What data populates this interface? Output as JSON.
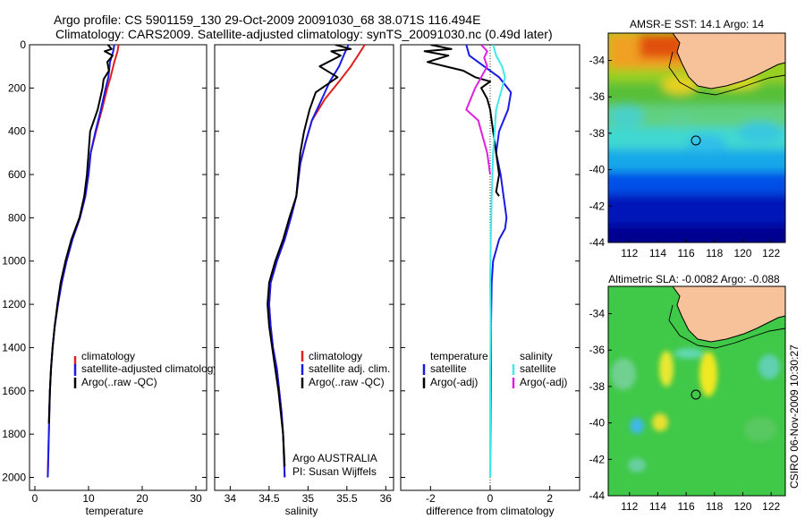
{
  "title": {
    "line1": "Argo profile: CS 5901159_130 29-Oct-2009 20091030_68 38.071S 116.494E",
    "line2": "Climatology: CARS2009. Satellite-adjusted climatology: synTS_20091030.nc (0.49d later)"
  },
  "colors": {
    "red": "#e02020",
    "blue": "#1a1ae6",
    "black": "#000000",
    "cyan": "#40e8e8",
    "magenta": "#e020e0",
    "land": "#f7c19a"
  },
  "chart_data": [
    {
      "type": "line",
      "name": "temperature-panel",
      "xlabel": "temperature",
      "xlim": [
        -1,
        32
      ],
      "ylim": [
        2060,
        0
      ],
      "xticks": [
        "0",
        "10",
        "20",
        "30"
      ],
      "yticks": [
        "0",
        "200",
        "400",
        "600",
        "800",
        "1000",
        "1200",
        "1400",
        "1600",
        "1800",
        "2000"
      ],
      "legend": [
        "climatology",
        "satellite-adjusted climatology",
        "Argo(..raw -QC)"
      ],
      "series": [
        {
          "name": "climatology",
          "color": "red",
          "points": [
            [
              15.6,
              0
            ],
            [
              15.4,
              30
            ],
            [
              14.8,
              80
            ],
            [
              14.1,
              150
            ],
            [
              13.5,
              200
            ],
            [
              12.5,
              300
            ],
            [
              11.4,
              400
            ],
            [
              10.4,
              500
            ],
            [
              10.0,
              600
            ],
            [
              9.4,
              700
            ],
            [
              8.4,
              800
            ],
            [
              7.0,
              900
            ],
            [
              5.9,
              1000
            ],
            [
              5.0,
              1100
            ],
            [
              4.3,
              1200
            ],
            [
              3.7,
              1300
            ],
            [
              3.3,
              1400
            ],
            [
              3.0,
              1500
            ],
            [
              2.8,
              1600
            ],
            [
              2.6,
              1800
            ],
            [
              2.4,
              2000
            ]
          ]
        },
        {
          "name": "satellite",
          "color": "blue",
          "points": [
            [
              14.8,
              0
            ],
            [
              14.6,
              30
            ],
            [
              14.0,
              80
            ],
            [
              13.7,
              150
            ],
            [
              13.2,
              200
            ],
            [
              12.3,
              300
            ],
            [
              11.3,
              400
            ],
            [
              10.4,
              500
            ],
            [
              10.0,
              600
            ],
            [
              9.4,
              700
            ],
            [
              8.4,
              800
            ],
            [
              7.0,
              900
            ],
            [
              5.9,
              1000
            ],
            [
              5.0,
              1100
            ],
            [
              4.3,
              1200
            ],
            [
              3.7,
              1300
            ],
            [
              3.3,
              1400
            ],
            [
              3.0,
              1500
            ],
            [
              2.8,
              1600
            ],
            [
              2.6,
              1800
            ],
            [
              2.4,
              2000
            ]
          ]
        },
        {
          "name": "argo",
          "color": "black",
          "points": [
            [
              13.6,
              0
            ],
            [
              14.3,
              20
            ],
            [
              13.0,
              30
            ],
            [
              14.5,
              50
            ],
            [
              13.5,
              80
            ],
            [
              13.8,
              120
            ],
            [
              12.8,
              160
            ],
            [
              12.6,
              200
            ],
            [
              11.7,
              300
            ],
            [
              10.3,
              400
            ],
            [
              10.0,
              500
            ],
            [
              9.7,
              600
            ],
            [
              9.2,
              700
            ],
            [
              8.3,
              800
            ],
            [
              6.8,
              900
            ],
            [
              5.7,
              1000
            ],
            [
              4.8,
              1100
            ],
            [
              4.2,
              1200
            ],
            [
              3.7,
              1300
            ],
            [
              3.3,
              1400
            ],
            [
              3.0,
              1500
            ],
            [
              2.8,
              1600
            ],
            [
              2.6,
              1750
            ]
          ]
        }
      ]
    },
    {
      "type": "line",
      "name": "salinity-panel",
      "xlabel": "salinity",
      "xlim": [
        33.8,
        36.1
      ],
      "ylim": [
        2060,
        0
      ],
      "xticks": [
        "34",
        "34.5",
        "35",
        "35.5",
        "36"
      ],
      "legend": [
        "climatology",
        "satellite adj. clim.",
        "Argo(..raw -QC)"
      ],
      "annotation": [
        "Argo AUSTRALIA",
        "PI: Susan Wijffels"
      ],
      "series": [
        {
          "name": "climatology",
          "color": "red",
          "points": [
            [
              35.73,
              0
            ],
            [
              35.66,
              40
            ],
            [
              35.55,
              100
            ],
            [
              35.4,
              170
            ],
            [
              35.22,
              250
            ],
            [
              35.05,
              350
            ],
            [
              34.97,
              450
            ],
            [
              34.9,
              550
            ],
            [
              34.85,
              700
            ],
            [
              34.78,
              800
            ],
            [
              34.7,
              900
            ],
            [
              34.6,
              1000
            ],
            [
              34.52,
              1100
            ],
            [
              34.5,
              1200
            ],
            [
              34.52,
              1300
            ],
            [
              34.55,
              1400
            ],
            [
              34.6,
              1500
            ],
            [
              34.63,
              1600
            ],
            [
              34.66,
              1700
            ],
            [
              34.68,
              1800
            ],
            [
              34.7,
              2000
            ]
          ]
        },
        {
          "name": "satellite",
          "color": "blue",
          "points": [
            [
              35.52,
              0
            ],
            [
              35.47,
              40
            ],
            [
              35.4,
              100
            ],
            [
              35.28,
              170
            ],
            [
              35.18,
              250
            ],
            [
              35.05,
              350
            ],
            [
              34.97,
              450
            ],
            [
              34.9,
              550
            ],
            [
              34.85,
              700
            ],
            [
              34.78,
              800
            ],
            [
              34.7,
              900
            ],
            [
              34.6,
              1000
            ],
            [
              34.52,
              1100
            ],
            [
              34.5,
              1200
            ],
            [
              34.52,
              1300
            ],
            [
              34.55,
              1400
            ],
            [
              34.6,
              1500
            ],
            [
              34.63,
              1600
            ],
            [
              34.66,
              1700
            ],
            [
              34.68,
              1800
            ],
            [
              34.7,
              2000
            ]
          ]
        },
        {
          "name": "argo",
          "color": "black",
          "points": [
            [
              35.35,
              0
            ],
            [
              35.55,
              20
            ],
            [
              35.3,
              30
            ],
            [
              35.42,
              50
            ],
            [
              35.15,
              100
            ],
            [
              35.38,
              150
            ],
            [
              35.1,
              220
            ],
            [
              35.02,
              300
            ],
            [
              34.95,
              400
            ],
            [
              34.9,
              500
            ],
            [
              34.85,
              700
            ],
            [
              34.76,
              800
            ],
            [
              34.68,
              900
            ],
            [
              34.58,
              1000
            ],
            [
              34.5,
              1100
            ],
            [
              34.48,
              1200
            ],
            [
              34.5,
              1300
            ],
            [
              34.54,
              1400
            ],
            [
              34.58,
              1500
            ],
            [
              34.62,
              1600
            ],
            [
              34.65,
              1700
            ],
            [
              34.68,
              1800
            ],
            [
              34.7,
              1950
            ]
          ]
        }
      ]
    },
    {
      "type": "line",
      "name": "difference-panel",
      "xlabel": "difference from climatology",
      "xlim": [
        -3,
        3
      ],
      "ylim": [
        2060,
        0
      ],
      "xticks": [
        "-2",
        "0",
        "2"
      ],
      "legend_temperature": [
        "temperature",
        "satellite",
        "Argo(-adj)"
      ],
      "legend_salinity": [
        "salinity",
        "satellite",
        "Argo(-adj)"
      ],
      "series": [
        {
          "name": "temperature-satellite",
          "color": "blue",
          "points": [
            [
              -0.8,
              0
            ],
            [
              -0.7,
              50
            ],
            [
              -0.2,
              100
            ],
            [
              0.3,
              150
            ],
            [
              0.7,
              220
            ],
            [
              0.6,
              300
            ],
            [
              0.3,
              400
            ],
            [
              0.2,
              500
            ],
            [
              0.35,
              600
            ],
            [
              0.45,
              700
            ],
            [
              0.55,
              800
            ],
            [
              0.5,
              850
            ],
            [
              0.3,
              900
            ],
            [
              0.1,
              1000
            ],
            [
              0.05,
              1100
            ],
            [
              0.03,
              1300
            ],
            [
              0.02,
              1600
            ],
            [
              0.0,
              2000
            ]
          ]
        },
        {
          "name": "temperature-argo",
          "color": "black",
          "points": [
            [
              -2.0,
              0
            ],
            [
              -1.3,
              20
            ],
            [
              -2.2,
              30
            ],
            [
              -1.4,
              50
            ],
            [
              -2.1,
              80
            ],
            [
              -0.9,
              120
            ],
            [
              -0.5,
              150
            ],
            [
              0.0,
              170
            ],
            [
              -0.3,
              200
            ],
            [
              -0.1,
              250
            ],
            [
              0.0,
              300
            ],
            [
              0.1,
              400
            ],
            [
              0.2,
              500
            ],
            [
              0.3,
              600
            ],
            [
              0.2,
              680
            ],
            [
              0.3,
              700
            ]
          ]
        },
        {
          "name": "salinity-satellite",
          "color": "cyan",
          "points": [
            [
              0.1,
              0
            ],
            [
              0.2,
              50
            ],
            [
              0.4,
              100
            ],
            [
              0.5,
              150
            ],
            [
              0.4,
              200
            ],
            [
              0.3,
              250
            ],
            [
              0.2,
              300
            ],
            [
              0.15,
              400
            ],
            [
              0.1,
              500
            ],
            [
              0.05,
              700
            ],
            [
              0.02,
              900
            ],
            [
              0.0,
              1100
            ],
            [
              0.02,
              1300
            ],
            [
              0.0,
              1500
            ],
            [
              0.0,
              1800
            ],
            [
              0.0,
              2000
            ]
          ]
        },
        {
          "name": "salinity-argo",
          "color": "magenta",
          "points": [
            [
              -0.3,
              0
            ],
            [
              -0.1,
              30
            ],
            [
              -0.2,
              60
            ],
            [
              -0.1,
              100
            ],
            [
              -0.3,
              150
            ],
            [
              -0.5,
              200
            ],
            [
              -0.8,
              300
            ],
            [
              -0.4,
              350
            ],
            [
              -0.3,
              400
            ],
            [
              -0.1,
              500
            ],
            [
              0.0,
              600
            ]
          ]
        }
      ]
    },
    {
      "type": "heatmap",
      "name": "sst-map",
      "title": "AMSR-E SST: 14.1 Argo: 14",
      "xlim": [
        110.5,
        123
      ],
      "ylim": [
        -44,
        -32.5
      ],
      "xticks": [
        "112",
        "114",
        "116",
        "118",
        "120",
        "122"
      ],
      "yticks": [
        "-34",
        "-36",
        "-38",
        "-40",
        "-42",
        "-44"
      ],
      "marker": {
        "lon": 116.494,
        "lat": -38.071
      }
    },
    {
      "type": "heatmap",
      "name": "sla-map",
      "title": "Altimetric SLA: -0.0082 Argo: -0.088",
      "xlim": [
        110.5,
        123
      ],
      "ylim": [
        -44,
        -32.5
      ],
      "xticks": [
        "112",
        "114",
        "116",
        "118",
        "120",
        "122"
      ],
      "yticks": [
        "-34",
        "-36",
        "-38",
        "-40",
        "-42",
        "-44"
      ],
      "marker": {
        "lon": 116.494,
        "lat": -38.071
      }
    }
  ],
  "credit": "CSIRO 06-Nov-2009 10:30:27"
}
